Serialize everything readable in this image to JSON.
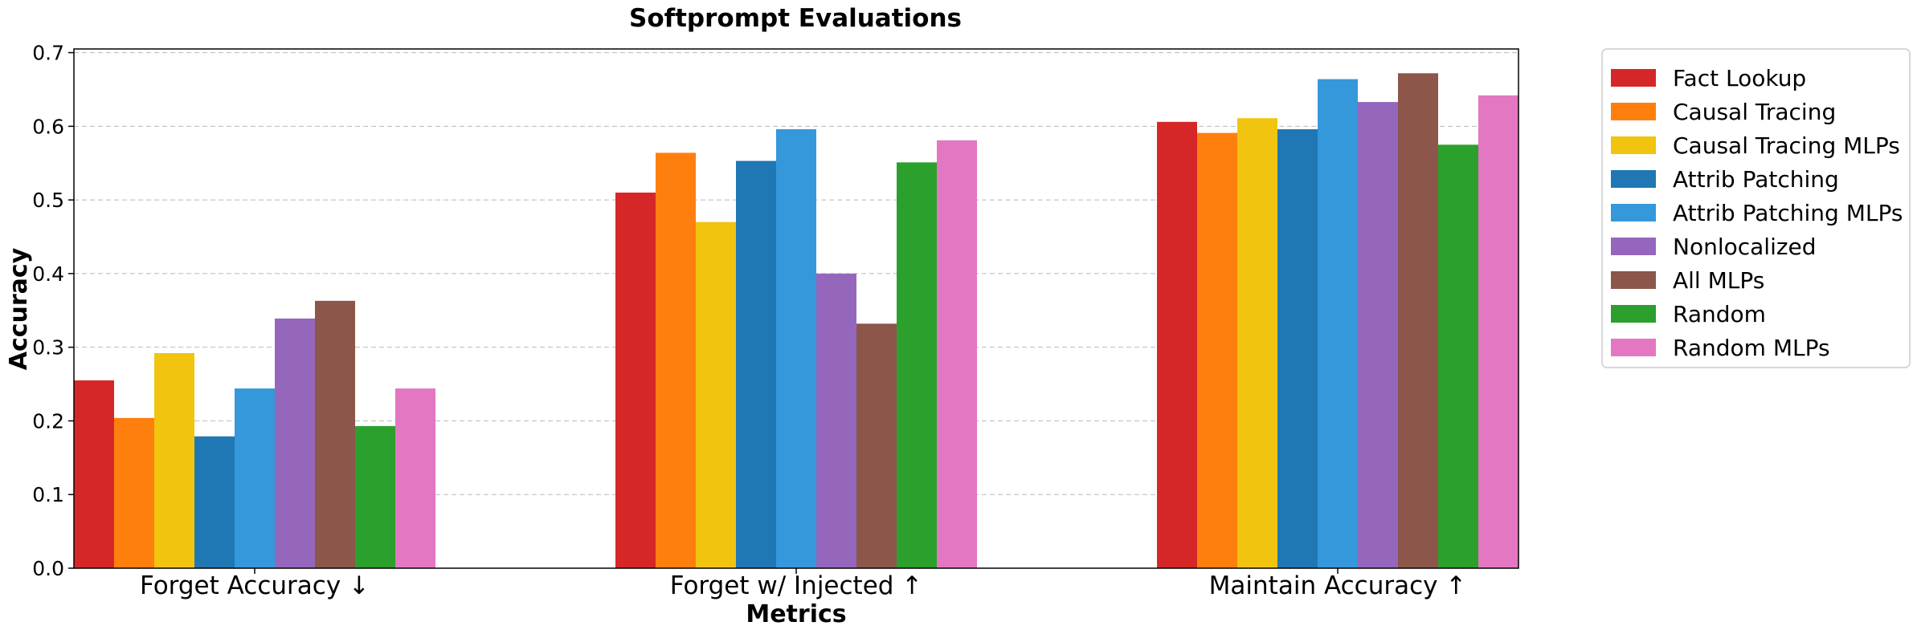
{
  "chart_data": {
    "type": "bar",
    "title": "Softprompt Evaluations",
    "xlabel": "Metrics",
    "ylabel": "Accuracy",
    "ylim": [
      0,
      0.705
    ],
    "yticks": [
      "0.0",
      "0.1",
      "0.2",
      "0.3",
      "0.4",
      "0.5",
      "0.6",
      "0.7"
    ],
    "ytick_values": [
      0,
      0.1,
      0.2,
      0.3,
      0.4,
      0.5,
      0.6,
      0.7
    ],
    "grid": "horizontal dashed",
    "legend_position": "outside-right-top",
    "categories": [
      "Forget Accuracy ↓",
      "Forget w/ Injected ↑",
      "Maintain Accuracy ↑"
    ],
    "series": [
      {
        "name": "Fact Lookup",
        "color": "#d62728",
        "values": [
          0.255,
          0.51,
          0.606
        ]
      },
      {
        "name": "Causal Tracing",
        "color": "#ff7f0e",
        "values": [
          0.204,
          0.564,
          0.591
        ]
      },
      {
        "name": "Causal Tracing MLPs",
        "color": "#f1c40f",
        "values": [
          0.292,
          0.47,
          0.611
        ]
      },
      {
        "name": "Attrib Patching",
        "color": "#1f77b4",
        "values": [
          0.179,
          0.553,
          0.596
        ]
      },
      {
        "name": "Attrib Patching MLPs",
        "color": "#3498db",
        "values": [
          0.244,
          0.596,
          0.664
        ]
      },
      {
        "name": "Nonlocalized",
        "color": "#9467bd",
        "values": [
          0.339,
          0.4,
          0.633
        ]
      },
      {
        "name": "All MLPs",
        "color": "#8c564b",
        "values": [
          0.363,
          0.332,
          0.672
        ]
      },
      {
        "name": "Random",
        "color": "#2ca02c",
        "values": [
          0.193,
          0.551,
          0.575
        ]
      },
      {
        "name": "Random MLPs",
        "color": "#e377c2",
        "values": [
          0.244,
          0.581,
          0.642
        ]
      }
    ]
  }
}
